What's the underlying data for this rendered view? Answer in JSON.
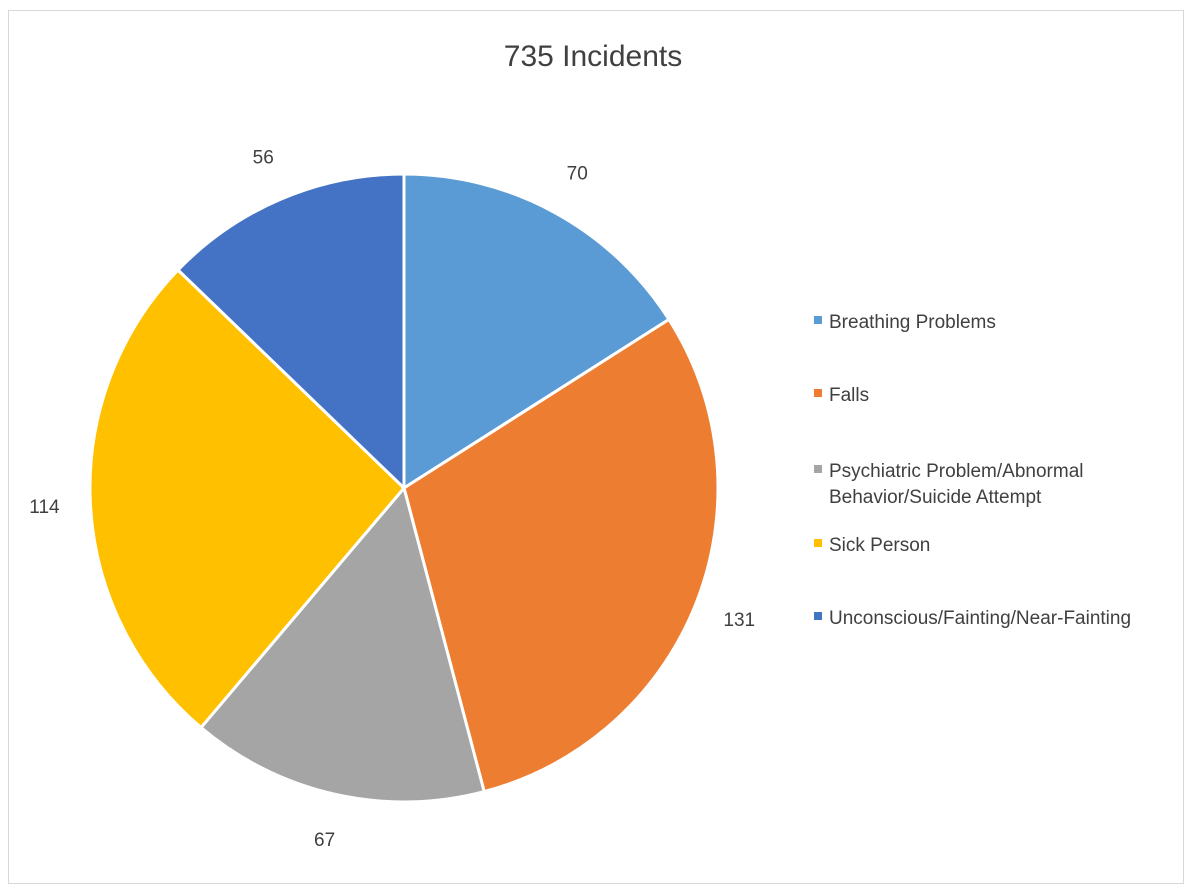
{
  "chart_data": {
    "type": "pie",
    "title": "735 Incidents",
    "categories": [
      "Breathing Problems",
      "Falls",
      "Psychiatric Problem/Abnormal Behavior/Suicide Attempt",
      "Sick Person",
      "Unconscious/Fainting/Near-Fainting"
    ],
    "values": [
      70,
      131,
      67,
      114,
      56
    ],
    "colors": [
      "#5b9bd5",
      "#ed7d31",
      "#a5a5a5",
      "#ffc000",
      "#4472c4"
    ],
    "legend_position": "right"
  }
}
